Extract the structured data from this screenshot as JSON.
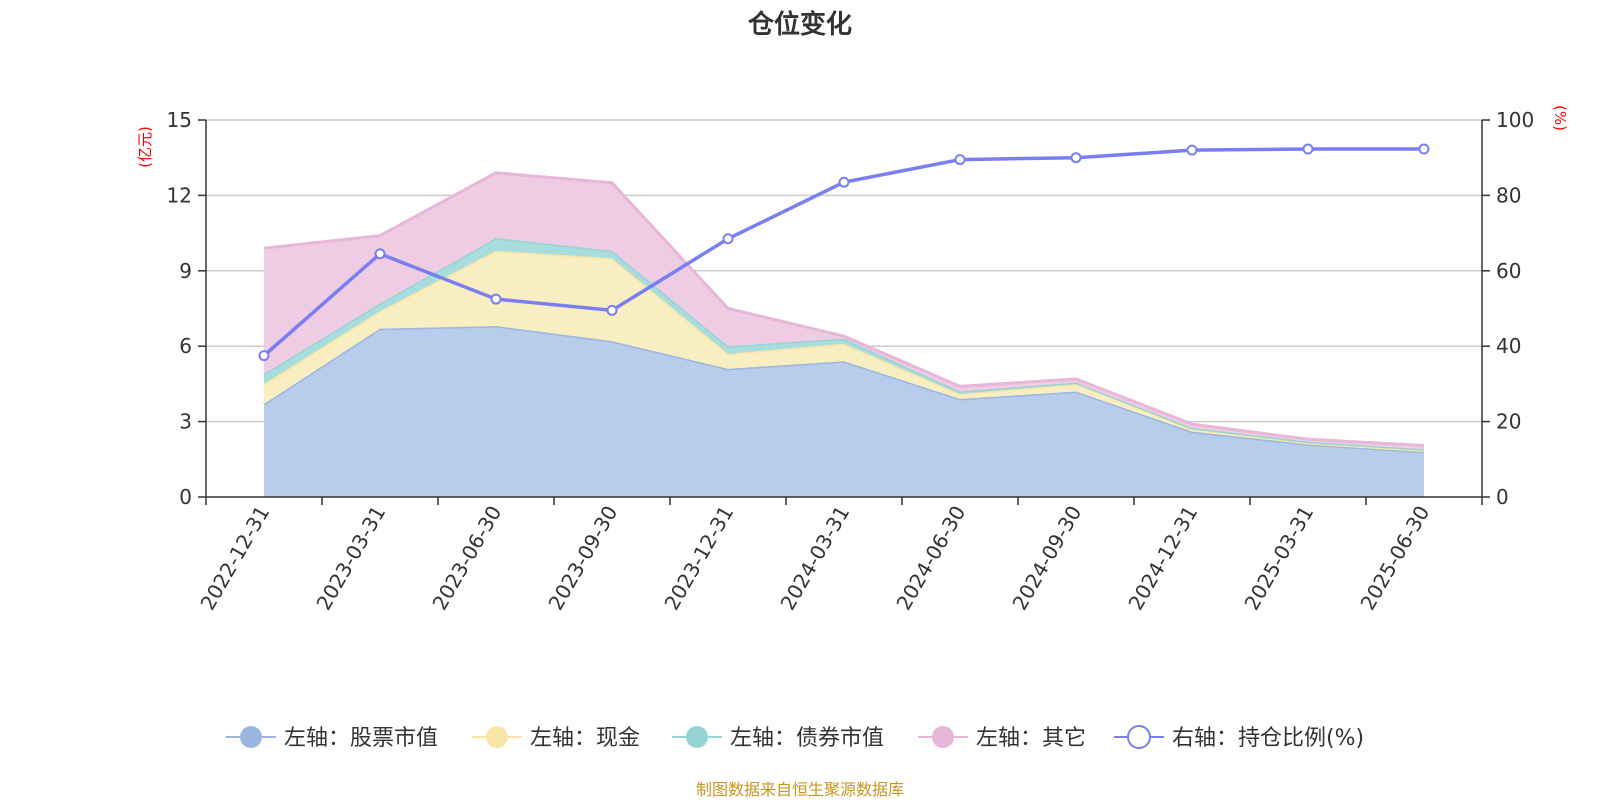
{
  "chart_data": {
    "type": "area",
    "title": "仓位变化",
    "left_axis_unit": "(亿元)",
    "right_axis_unit": "(%)",
    "categories": [
      "2022-12-31",
      "2023-03-31",
      "2023-06-30",
      "2023-09-30",
      "2023-12-31",
      "2024-03-31",
      "2024-06-30",
      "2024-09-30",
      "2024-12-31",
      "2025-03-31",
      "2025-06-30"
    ],
    "left_ylim": [
      0,
      15
    ],
    "left_ticks": [
      0,
      3,
      6,
      9,
      12,
      15
    ],
    "right_ylim": [
      0,
      100
    ],
    "right_ticks": [
      0,
      20,
      40,
      60,
      80,
      100
    ],
    "stacked": true,
    "grid": true,
    "legend_position": "bottom",
    "series": [
      {
        "name": "左轴：股票市值",
        "axis": "left",
        "color": "#9bb6e0",
        "fill": "#b8cceb",
        "values": [
          3.7,
          6.7,
          6.8,
          6.2,
          5.1,
          5.4,
          3.9,
          4.2,
          2.6,
          2.1,
          1.8
        ]
      },
      {
        "name": "左轴：现金",
        "axis": "left",
        "color": "#f8e6a8",
        "fill": "#f9edc2",
        "values": [
          0.8,
          0.7,
          3.0,
          3.3,
          0.6,
          0.7,
          0.2,
          0.3,
          0.1,
          0.05,
          0.05
        ]
      },
      {
        "name": "左轴：债券市值",
        "axis": "left",
        "color": "#96d4d4",
        "fill": "#a9dcdc",
        "values": [
          0.4,
          0.3,
          0.5,
          0.3,
          0.3,
          0.2,
          0.1,
          0.05,
          0.05,
          0.05,
          0.05
        ]
      },
      {
        "name": "左轴：其它",
        "axis": "left",
        "color": "#e8b6d8",
        "fill": "#eecde4",
        "values": [
          5.0,
          2.7,
          2.6,
          2.7,
          1.5,
          0.1,
          0.2,
          0.15,
          0.15,
          0.1,
          0.15
        ]
      },
      {
        "name": "右轴：持仓比例(%)",
        "axis": "right",
        "type": "line",
        "color": "#7b7ef0",
        "values": [
          37.5,
          64.5,
          52.5,
          49.5,
          68.5,
          83.5,
          89.5,
          90,
          92,
          92.3,
          92.3
        ]
      }
    ]
  },
  "footer": {
    "source": "制图数据来自恒生聚源数据库"
  }
}
